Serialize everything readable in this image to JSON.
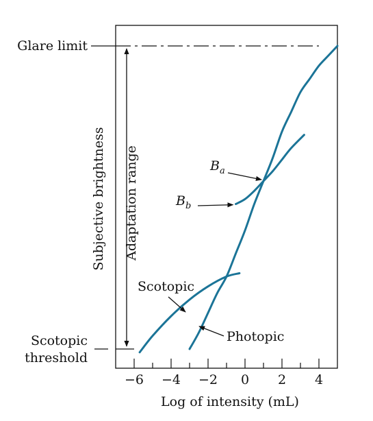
{
  "chart_data": {
    "type": "line",
    "title": "",
    "xlabel": "Log of intensity (mL)",
    "ylabel": "Subjective brightness",
    "xlim": [
      -7,
      5
    ],
    "ylim": [
      0,
      1
    ],
    "x_ticks": [
      -6,
      -4,
      -2,
      0,
      2,
      4
    ],
    "x_tick_labels": [
      "−6",
      "−4",
      "−2",
      "0",
      "2",
      "4"
    ],
    "y_levels": {
      "glare_limit": {
        "label": "Glare limit",
        "y": 0.92
      },
      "scotopic_threshold": {
        "label_line1": "Scotopic",
        "label_line2": "threshold",
        "y": 0.0
      }
    },
    "range_label": "Adaptation range",
    "color": "#1b7497",
    "series": [
      {
        "name": "Photopic",
        "x": [
          -3,
          -2.5,
          -2,
          -1.5,
          -1,
          -0.5,
          0,
          0.5,
          1,
          1.5,
          2,
          2.5,
          3,
          3.5,
          4,
          4.5,
          5
        ],
        "y": [
          0.0,
          0.05,
          0.11,
          0.17,
          0.22,
          0.29,
          0.36,
          0.44,
          0.51,
          0.58,
          0.66,
          0.72,
          0.78,
          0.82,
          0.86,
          0.89,
          0.92
        ]
      },
      {
        "name": "Scotopic",
        "x": [
          -5.7,
          -5,
          -4,
          -3,
          -2,
          -1,
          -0.3
        ],
        "y": [
          -0.01,
          0.04,
          0.1,
          0.15,
          0.19,
          0.22,
          0.23
        ]
      },
      {
        "name": "",
        "x": [
          -0.5,
          0,
          0.5,
          1,
          1.5,
          2,
          2.5,
          3.2
        ],
        "y": [
          0.44,
          0.455,
          0.48,
          0.51,
          0.54,
          0.575,
          0.61,
          0.65
        ]
      }
    ],
    "annotations": [
      {
        "text_main": "B",
        "text_sub": "a",
        "x": 1.0,
        "y": 0.51
      },
      {
        "text_main": "B",
        "text_sub": "b",
        "x": -0.5,
        "y": 0.44
      },
      {
        "text": "Scotopic",
        "x": -2.0,
        "y": 0.19
      },
      {
        "text": "Photopic",
        "x": -2.5,
        "y": 0.05
      }
    ]
  }
}
